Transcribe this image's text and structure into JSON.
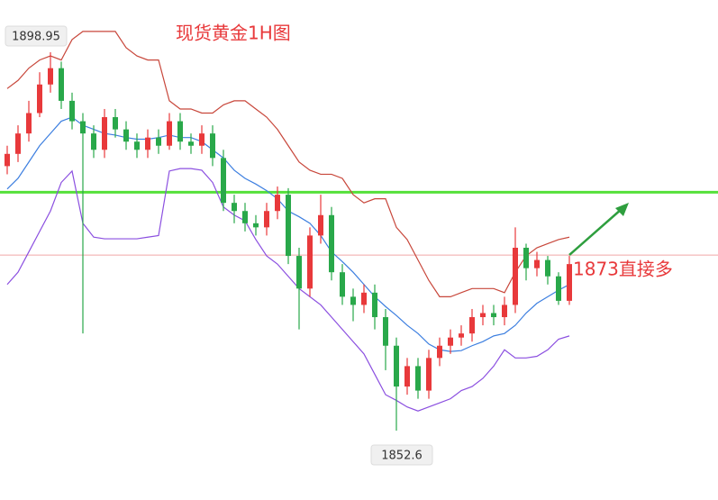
{
  "chart_data": {
    "type": "candlestick",
    "title": "现货黄金1H图",
    "annotation": "1873直接多",
    "ylim": [
      1844.1,
      1905.35
    ],
    "up_color": "#e8393b",
    "down_color": "#29a84a",
    "open": [
      1885,
      1886.5,
      1889,
      1891.5,
      1895,
      1897,
      1893,
      1890.5,
      1889,
      1887,
      1891,
      1889.5,
      1888,
      1887,
      1888.5,
      1887.5,
      1890.5,
      1888,
      1887.5,
      1889,
      1886,
      1880.5,
      1879.5,
      1878,
      1877.5,
      1879.5,
      1881.5,
      1874,
      1870,
      1876.5,
      1879,
      1872,
      1869,
      1868,
      1869.5,
      1866.5,
      1863,
      1858,
      1860.5,
      1857.5,
      1861.5,
      1863,
      1864,
      1864.5,
      1866.5,
      1867,
      1866.5,
      1868,
      1875,
      1872.5,
      1873.5,
      1871.5,
      1868.5
    ],
    "high": [
      1887.5,
      1890,
      1893,
      1896.5,
      1898.95,
      1897.8,
      1894,
      1891.5,
      1890,
      1892,
      1892,
      1890.5,
      1889,
      1889.5,
      1889.5,
      1891.5,
      1891.5,
      1889,
      1890,
      1890,
      1887,
      1881.5,
      1880.5,
      1879,
      1880.5,
      1882.5,
      1882.3,
      1875,
      1877.5,
      1881.5,
      1880,
      1873,
      1870,
      1870.5,
      1870.5,
      1867.5,
      1864,
      1861.5,
      1861.5,
      1862.5,
      1864,
      1865,
      1865.5,
      1867.5,
      1868,
      1868,
      1869,
      1877.5,
      1875.5,
      1874.5,
      1874,
      1872,
      1874
    ],
    "low": [
      1884,
      1885.5,
      1888,
      1891,
      1894,
      1892,
      1889.5,
      1864.5,
      1886,
      1886,
      1888.5,
      1887,
      1886,
      1886,
      1886.5,
      1887,
      1887,
      1886.5,
      1886.5,
      1885,
      1879.5,
      1878,
      1877,
      1876.5,
      1876.5,
      1878.5,
      1873,
      1865,
      1869,
      1875.5,
      1871,
      1868,
      1866,
      1867,
      1865,
      1860,
      1852.6,
      1857,
      1856.5,
      1856.5,
      1860.5,
      1862,
      1863,
      1863.5,
      1865.5,
      1865.5,
      1865.5,
      1867,
      1871,
      1871.5,
      1870.5,
      1868,
      1868
    ],
    "close": [
      1886.5,
      1889,
      1891.5,
      1895,
      1897,
      1893,
      1890.5,
      1889,
      1887,
      1891,
      1889.5,
      1888,
      1887,
      1888.5,
      1887.5,
      1890.5,
      1888,
      1887.5,
      1889,
      1886,
      1880.5,
      1879.5,
      1878,
      1877.5,
      1879.5,
      1881.5,
      1874,
      1870,
      1876.5,
      1879,
      1872,
      1869,
      1868,
      1869.5,
      1866.5,
      1863,
      1858,
      1860.5,
      1857.5,
      1861.5,
      1863,
      1864,
      1864.5,
      1866.5,
      1867,
      1866.5,
      1868,
      1875,
      1872.5,
      1873.5,
      1871.5,
      1868.5,
      1873
    ],
    "series": [
      {
        "color": "#c8473b",
        "values": [
          1894.5,
          1895.5,
          1897,
          1898,
          1898.5,
          1898,
          1900.5,
          1901.5,
          1901.5,
          1901.5,
          1901.5,
          1899.5,
          1898.5,
          1898,
          1898,
          1893,
          1892,
          1892,
          1891.5,
          1891.5,
          1892.5,
          1893,
          1893,
          1892,
          1891,
          1889.5,
          1887.5,
          1885.5,
          1884.5,
          1884,
          1884,
          1883.5,
          1881.5,
          1880.5,
          1881,
          1881,
          1877.5,
          1876,
          1873.5,
          1871,
          1869,
          1869,
          1869.5,
          1870,
          1870,
          1870,
          1869.5,
          1872,
          1874,
          1875,
          1875.5,
          1876,
          1876.3
        ]
      },
      {
        "color": "#3d7fe0",
        "values": [
          1882.2,
          1883.5,
          1885.5,
          1887.5,
          1889,
          1890.5,
          1891,
          1890,
          1889.5,
          1889,
          1888.8,
          1888.5,
          1888.3,
          1888.3,
          1888.5,
          1888.8,
          1888.5,
          1888.5,
          1888,
          1887,
          1886,
          1884.5,
          1883.5,
          1882.8,
          1882,
          1881,
          1879.5,
          1878.8,
          1878,
          1876.5,
          1874.5,
          1873.3,
          1872,
          1870.5,
          1869,
          1867.8,
          1866.7,
          1865.5,
          1864.5,
          1863.2,
          1862.5,
          1862.3,
          1862.4,
          1863,
          1863.5,
          1864.2,
          1864.5,
          1865.5,
          1867,
          1868.2,
          1869,
          1869.8,
          1870.5
        ]
      },
      {
        "color": "#8b4fe0",
        "values": [
          1870.5,
          1872,
          1874.5,
          1877,
          1879.5,
          1883,
          1884.4,
          1878,
          1876.3,
          1876.1,
          1876.1,
          1876.1,
          1876.1,
          1876.3,
          1876.5,
          1884.4,
          1884.7,
          1884.7,
          1884.5,
          1883,
          1880,
          1879,
          1878.3,
          1876,
          1874,
          1873,
          1871.5,
          1870,
          1869,
          1868,
          1866.5,
          1865,
          1863.5,
          1862,
          1859.5,
          1857,
          1856.3,
          1855.5,
          1855,
          1855.5,
          1856,
          1856.5,
          1857.5,
          1858,
          1859,
          1860.5,
          1862.5,
          1861.5,
          1861.5,
          1861.7,
          1862.5,
          1863.8,
          1864.2
        ]
      }
    ],
    "hlines": [
      {
        "value": 1881.8,
        "color": "#55e03a"
      },
      {
        "value": 1874.1,
        "color": "#f0a8a8"
      }
    ]
  }
}
